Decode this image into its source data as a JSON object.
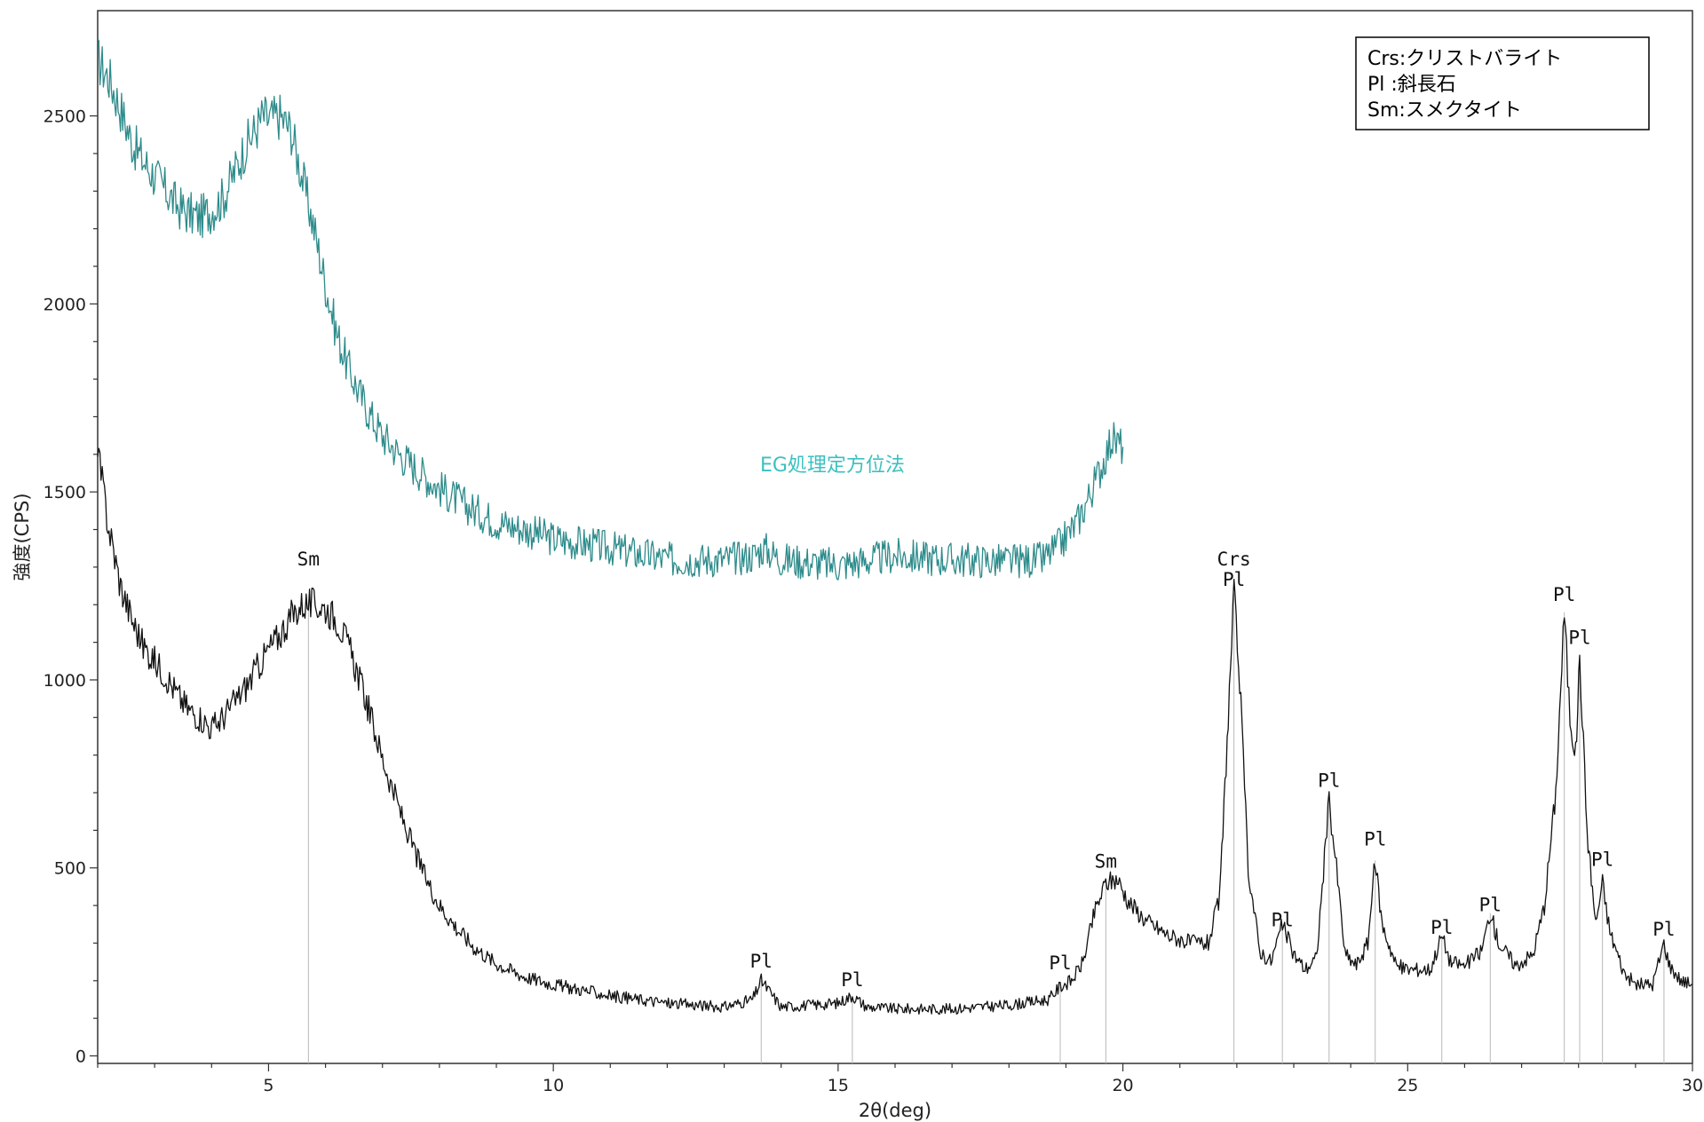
{
  "chart_data": {
    "type": "line",
    "title": "",
    "xlabel": "2θ(deg)",
    "ylabel": "強度(CPS)",
    "xlim": [
      2,
      30
    ],
    "ylim": [
      -20,
      2780
    ],
    "x_ticks": [
      5,
      10,
      15,
      20,
      25,
      30
    ],
    "y_ticks": [
      0,
      500,
      1000,
      1500,
      2000,
      2500
    ],
    "grid": false,
    "legend_position": "top-right",
    "legend": [
      {
        "abbr": "Crs",
        "sep": ":",
        "name": "クリストバライト"
      },
      {
        "abbr": "Pl",
        "sep": " :",
        "name": "斜長石"
      },
      {
        "abbr": "Sm",
        "sep": ":",
        "name": "スメクタイト"
      }
    ],
    "series": [
      {
        "name": "EG処理定方位法",
        "color": "#2e8b8b",
        "label_color": "#3cc0c0",
        "label_at": [
          14.9,
          1555
        ],
        "points": [
          [
            2,
            2650
          ],
          [
            2.2,
            2600
          ],
          [
            2.4,
            2520
          ],
          [
            2.6,
            2430
          ],
          [
            2.8,
            2380
          ],
          [
            3.0,
            2340
          ],
          [
            3.2,
            2300
          ],
          [
            3.4,
            2260
          ],
          [
            3.6,
            2240
          ],
          [
            3.8,
            2230
          ],
          [
            4.0,
            2250
          ],
          [
            4.2,
            2280
          ],
          [
            4.4,
            2350
          ],
          [
            4.6,
            2420
          ],
          [
            4.8,
            2470
          ],
          [
            4.9,
            2500
          ],
          [
            5.0,
            2490
          ],
          [
            5.2,
            2500
          ],
          [
            5.4,
            2460
          ],
          [
            5.6,
            2330
          ],
          [
            5.8,
            2200
          ],
          [
            6.0,
            2050
          ],
          [
            6.2,
            1920
          ],
          [
            6.4,
            1830
          ],
          [
            6.6,
            1760
          ],
          [
            6.8,
            1700
          ],
          [
            7.0,
            1650
          ],
          [
            7.3,
            1600
          ],
          [
            7.6,
            1560
          ],
          [
            8.0,
            1510
          ],
          [
            8.5,
            1460
          ],
          [
            9.0,
            1420
          ],
          [
            9.5,
            1400
          ],
          [
            10.0,
            1375
          ],
          [
            11,
            1350
          ],
          [
            12,
            1320
          ],
          [
            13,
            1320
          ],
          [
            13.5,
            1330
          ],
          [
            13.7,
            1350
          ],
          [
            14,
            1320
          ],
          [
            15,
            1305
          ],
          [
            16,
            1330
          ],
          [
            17,
            1320
          ],
          [
            18,
            1315
          ],
          [
            18.6,
            1320
          ],
          [
            18.9,
            1360
          ],
          [
            19.2,
            1420
          ],
          [
            19.5,
            1520
          ],
          [
            19.7,
            1600
          ],
          [
            19.8,
            1640
          ],
          [
            19.9,
            1630
          ],
          [
            20.0,
            1620
          ]
        ]
      },
      {
        "name": "",
        "color": "#111111",
        "points": [
          [
            2,
            1600
          ],
          [
            2.2,
            1400
          ],
          [
            2.4,
            1250
          ],
          [
            2.6,
            1160
          ],
          [
            2.8,
            1090
          ],
          [
            3.0,
            1050
          ],
          [
            3.2,
            1010
          ],
          [
            3.4,
            960
          ],
          [
            3.6,
            920
          ],
          [
            3.8,
            900
          ],
          [
            4.0,
            870
          ],
          [
            4.2,
            900
          ],
          [
            4.4,
            940
          ],
          [
            4.6,
            980
          ],
          [
            4.8,
            1030
          ],
          [
            5.0,
            1080
          ],
          [
            5.2,
            1120
          ],
          [
            5.4,
            1170
          ],
          [
            5.6,
            1200
          ],
          [
            5.8,
            1200
          ],
          [
            6.0,
            1190
          ],
          [
            6.2,
            1160
          ],
          [
            6.4,
            1090
          ],
          [
            6.6,
            1000
          ],
          [
            6.8,
            900
          ],
          [
            7.0,
            790
          ],
          [
            7.2,
            700
          ],
          [
            7.4,
            610
          ],
          [
            7.6,
            530
          ],
          [
            7.8,
            460
          ],
          [
            8.0,
            400
          ],
          [
            8.3,
            340
          ],
          [
            8.6,
            290
          ],
          [
            9.0,
            245
          ],
          [
            9.5,
            210
          ],
          [
            10,
            190
          ],
          [
            11,
            160
          ],
          [
            12,
            140
          ],
          [
            13,
            130
          ],
          [
            13.5,
            150
          ],
          [
            13.65,
            200
          ],
          [
            13.8,
            170
          ],
          [
            14,
            130
          ],
          [
            15,
            140
          ],
          [
            15.25,
            160
          ],
          [
            15.5,
            130
          ],
          [
            16,
            125
          ],
          [
            17,
            125
          ],
          [
            18,
            135
          ],
          [
            18.7,
            150
          ],
          [
            18.9,
            185
          ],
          [
            19.1,
            200
          ],
          [
            19.3,
            250
          ],
          [
            19.5,
            380
          ],
          [
            19.7,
            460
          ],
          [
            19.9,
            470
          ],
          [
            20.1,
            410
          ],
          [
            20.4,
            360
          ],
          [
            20.8,
            320
          ],
          [
            21.2,
            300
          ],
          [
            21.5,
            300
          ],
          [
            21.7,
            420
          ],
          [
            21.85,
            900
          ],
          [
            21.95,
            1230
          ],
          [
            22.05,
            1000
          ],
          [
            22.2,
            500
          ],
          [
            22.4,
            280
          ],
          [
            22.6,
            250
          ],
          [
            22.8,
            350
          ],
          [
            23.0,
            270
          ],
          [
            23.2,
            230
          ],
          [
            23.4,
            260
          ],
          [
            23.5,
            450
          ],
          [
            23.62,
            680
          ],
          [
            23.75,
            500
          ],
          [
            23.9,
            270
          ],
          [
            24.1,
            240
          ],
          [
            24.3,
            300
          ],
          [
            24.43,
            520
          ],
          [
            24.55,
            350
          ],
          [
            24.8,
            240
          ],
          [
            25.0,
            230
          ],
          [
            25.4,
            230
          ],
          [
            25.6,
            320
          ],
          [
            25.75,
            250
          ],
          [
            26.0,
            240
          ],
          [
            26.3,
            280
          ],
          [
            26.45,
            380
          ],
          [
            26.6,
            300
          ],
          [
            26.9,
            240
          ],
          [
            27.2,
            270
          ],
          [
            27.4,
            400
          ],
          [
            27.6,
            700
          ],
          [
            27.75,
            1180
          ],
          [
            27.85,
            900
          ],
          [
            27.95,
            800
          ],
          [
            28.02,
            1060
          ],
          [
            28.15,
            600
          ],
          [
            28.3,
            350
          ],
          [
            28.42,
            460
          ],
          [
            28.55,
            330
          ],
          [
            28.8,
            220
          ],
          [
            29.0,
            190
          ],
          [
            29.3,
            190
          ],
          [
            29.5,
            300
          ],
          [
            29.6,
            240
          ],
          [
            29.8,
            200
          ],
          [
            30,
            190
          ]
        ]
      }
    ],
    "peak_lines": [
      5.7,
      13.65,
      15.25,
      18.9,
      19.7,
      21.95,
      22.8,
      23.62,
      24.43,
      25.6,
      26.45,
      27.75,
      28.02,
      28.42,
      29.5
    ],
    "peak_labels": [
      {
        "text": "Sm",
        "x": 5.7,
        "y": 1305
      },
      {
        "text": "Pl",
        "x": 13.65,
        "y": 235
      },
      {
        "text": "Pl",
        "x": 15.25,
        "y": 185
      },
      {
        "text": "Pl",
        "x": 18.9,
        "y": 230
      },
      {
        "text": "Sm",
        "x": 19.7,
        "y": 500
      },
      {
        "text": "Crs",
        "x": 21.95,
        "y": 1305
      },
      {
        "text": "Pl",
        "x": 21.95,
        "y": 1250
      },
      {
        "text": "Pl",
        "x": 22.8,
        "y": 345
      },
      {
        "text": "Pl",
        "x": 23.62,
        "y": 715
      },
      {
        "text": "Pl",
        "x": 24.43,
        "y": 560
      },
      {
        "text": "Pl",
        "x": 25.6,
        "y": 325
      },
      {
        "text": "Pl",
        "x": 26.45,
        "y": 385
      },
      {
        "text": "Pl",
        "x": 27.75,
        "y": 1210
      },
      {
        "text": "Pl",
        "x": 28.02,
        "y": 1095
      },
      {
        "text": "Pl",
        "x": 28.42,
        "y": 505
      },
      {
        "text": "Pl",
        "x": 29.5,
        "y": 320
      }
    ]
  }
}
